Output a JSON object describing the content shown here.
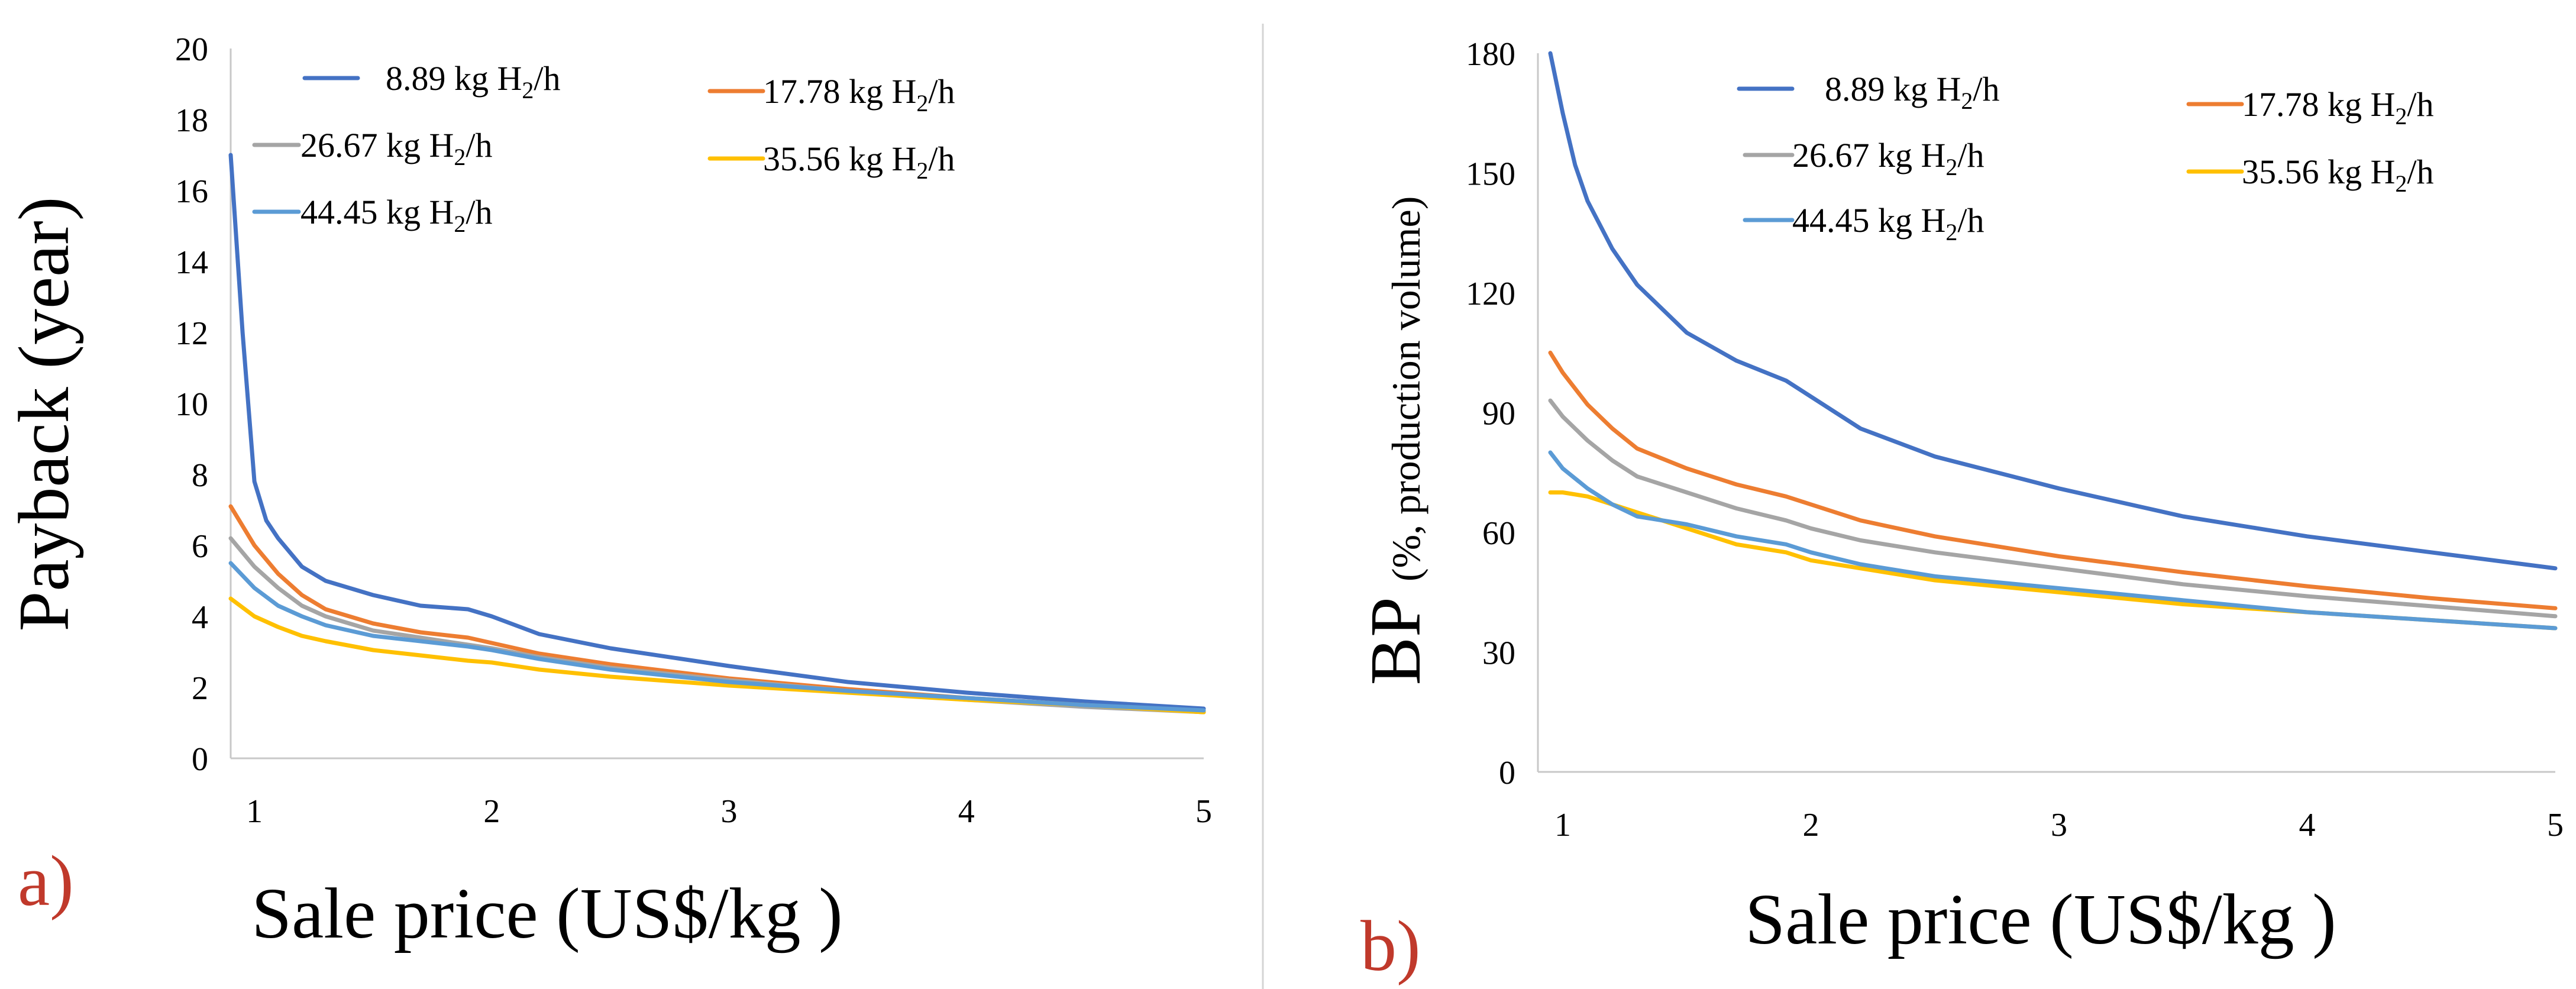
{
  "series_colors": [
    "#4472C4",
    "#ED7D31",
    "#A5A5A5",
    "#FFC000",
    "#5B9BD5"
  ],
  "tag_color": "#C0392B",
  "chart_data": [
    {
      "type": "line",
      "panel_tag": "a)",
      "xlabel": "Sale price (US$/kg )",
      "ylabel": "Payback (year)",
      "ylabel_parts": [
        "Payback",
        "(year)"
      ],
      "xlim": [
        0.9,
        5
      ],
      "ylim": [
        0,
        20
      ],
      "xticks": [
        "1",
        "2",
        "3",
        "4",
        "5"
      ],
      "xtick_values": [
        1,
        2,
        3,
        4,
        5
      ],
      "yticks": [
        "0",
        "2",
        "4",
        "6",
        "8",
        "10",
        "12",
        "14",
        "16",
        "18",
        "20"
      ],
      "ytick_values": [
        0,
        2,
        4,
        6,
        8,
        10,
        12,
        14,
        16,
        18,
        20
      ],
      "legend": [
        "8.89 kg H2/h",
        "17.78 kg H2/h",
        "26.67 kg H2/h",
        "35.56 kg H2/h",
        "44.45 kg H2/h"
      ],
      "series": [
        {
          "name": "8.89 kg H2/h",
          "x": [
            0.9,
            0.95,
            1.0,
            1.05,
            1.1,
            1.2,
            1.3,
            1.5,
            1.7,
            1.9,
            2.0,
            2.2,
            2.5,
            3.0,
            3.5,
            4.0,
            4.5,
            5.0
          ],
          "y": [
            17.0,
            12.0,
            7.8,
            6.7,
            6.2,
            5.4,
            5.0,
            4.6,
            4.3,
            4.2,
            4.0,
            3.5,
            3.1,
            2.6,
            2.15,
            1.85,
            1.6,
            1.4
          ]
        },
        {
          "name": "17.78 kg H2/h",
          "x": [
            0.9,
            1.0,
            1.1,
            1.2,
            1.3,
            1.5,
            1.7,
            1.9,
            2.0,
            2.2,
            2.5,
            3.0,
            3.5,
            4.0,
            4.5,
            5.0
          ],
          "y": [
            7.1,
            6.0,
            5.2,
            4.6,
            4.2,
            3.8,
            3.55,
            3.4,
            3.25,
            2.95,
            2.65,
            2.25,
            1.95,
            1.7,
            1.5,
            1.3
          ]
        },
        {
          "name": "26.67 kg H2/h",
          "x": [
            0.9,
            1.0,
            1.1,
            1.2,
            1.3,
            1.5,
            1.7,
            1.9,
            2.0,
            2.2,
            2.5,
            3.0,
            3.5,
            4.0,
            4.5,
            5.0
          ],
          "y": [
            6.2,
            5.4,
            4.8,
            4.3,
            4.0,
            3.6,
            3.4,
            3.2,
            3.1,
            2.85,
            2.55,
            2.2,
            1.9,
            1.65,
            1.45,
            1.3
          ]
        },
        {
          "name": "35.56 kg H2/h",
          "x": [
            0.9,
            1.0,
            1.1,
            1.2,
            1.3,
            1.5,
            1.7,
            1.9,
            2.0,
            2.2,
            2.5,
            3.0,
            3.5,
            4.0,
            4.5,
            5.0
          ],
          "y": [
            4.5,
            4.0,
            3.7,
            3.45,
            3.3,
            3.05,
            2.9,
            2.75,
            2.7,
            2.5,
            2.3,
            2.05,
            1.85,
            1.65,
            1.5,
            1.3
          ]
        },
        {
          "name": "44.45 kg H2/h",
          "x": [
            0.9,
            1.0,
            1.1,
            1.2,
            1.3,
            1.5,
            1.7,
            1.9,
            2.0,
            2.2,
            2.5,
            3.0,
            3.5,
            4.0,
            4.5,
            5.0
          ],
          "y": [
            5.5,
            4.8,
            4.3,
            4.0,
            3.75,
            3.45,
            3.3,
            3.15,
            3.05,
            2.8,
            2.5,
            2.15,
            1.9,
            1.7,
            1.5,
            1.35
          ]
        }
      ]
    },
    {
      "type": "line",
      "panel_tag": "b)",
      "xlabel": "Sale price (US$/kg )",
      "ylabel": "BP (%, production volume)",
      "ylabel_parts": [
        "BP",
        "(%, production volume)"
      ],
      "xlim": [
        0.9,
        5
      ],
      "ylim": [
        0,
        180
      ],
      "xticks": [
        "1",
        "2",
        "3",
        "4",
        "5"
      ],
      "xtick_values": [
        1,
        2,
        3,
        4,
        5
      ],
      "yticks": [
        "0",
        "30",
        "60",
        "90",
        "120",
        "150",
        "180"
      ],
      "ytick_values": [
        0,
        30,
        60,
        90,
        120,
        150,
        180
      ],
      "legend": [
        "8.89 kg H2/h",
        "17.78 kg H2/h",
        "26.67 kg H2/h",
        "35.56 kg H2/h",
        "44.45 kg H2/h"
      ],
      "series": [
        {
          "name": "8.89 kg H2/h",
          "x": [
            0.95,
            1.0,
            1.05,
            1.1,
            1.2,
            1.3,
            1.5,
            1.7,
            1.9,
            2.0,
            2.2,
            2.5,
            3.0,
            3.5,
            4.0,
            4.5,
            5.0
          ],
          "y": [
            180,
            165,
            152,
            143,
            131,
            122,
            110,
            103,
            98,
            94,
            86,
            79,
            71,
            64,
            59,
            55,
            51
          ]
        },
        {
          "name": "17.78 kg H2/h",
          "x": [
            0.95,
            1.0,
            1.1,
            1.2,
            1.3,
            1.5,
            1.7,
            1.9,
            2.0,
            2.2,
            2.5,
            3.0,
            3.5,
            4.0,
            4.5,
            5.0
          ],
          "y": [
            105,
            100,
            92,
            86,
            81,
            76,
            72,
            69,
            67,
            63,
            59,
            54,
            50,
            46.5,
            43.5,
            41
          ]
        },
        {
          "name": "26.67 kg H2/h",
          "x": [
            0.95,
            1.0,
            1.1,
            1.2,
            1.3,
            1.5,
            1.7,
            1.9,
            2.0,
            2.2,
            2.5,
            3.0,
            3.5,
            4.0,
            4.5,
            5.0
          ],
          "y": [
            93,
            89,
            83,
            78,
            74,
            70,
            66,
            63,
            61,
            58,
            55,
            51,
            47,
            44,
            41.5,
            39
          ]
        },
        {
          "name": "35.56 kg H2/h",
          "x": [
            0.95,
            1.0,
            1.1,
            1.2,
            1.3,
            1.5,
            1.7,
            1.9,
            2.0,
            2.2,
            2.5,
            3.0,
            3.5,
            4.0,
            4.5,
            5.0
          ],
          "y": [
            70,
            70,
            69,
            67,
            65,
            61,
            57,
            55,
            53,
            51,
            48,
            45,
            42,
            40,
            38,
            36
          ]
        },
        {
          "name": "44.45 kg H2/h",
          "x": [
            0.95,
            1.0,
            1.1,
            1.2,
            1.3,
            1.5,
            1.7,
            1.9,
            2.0,
            2.2,
            2.5,
            3.0,
            3.5,
            4.0,
            4.5,
            5.0
          ],
          "y": [
            80,
            76,
            71,
            67,
            64,
            62,
            59,
            57,
            55,
            52,
            49,
            46,
            43,
            40,
            38,
            36
          ]
        }
      ]
    }
  ]
}
